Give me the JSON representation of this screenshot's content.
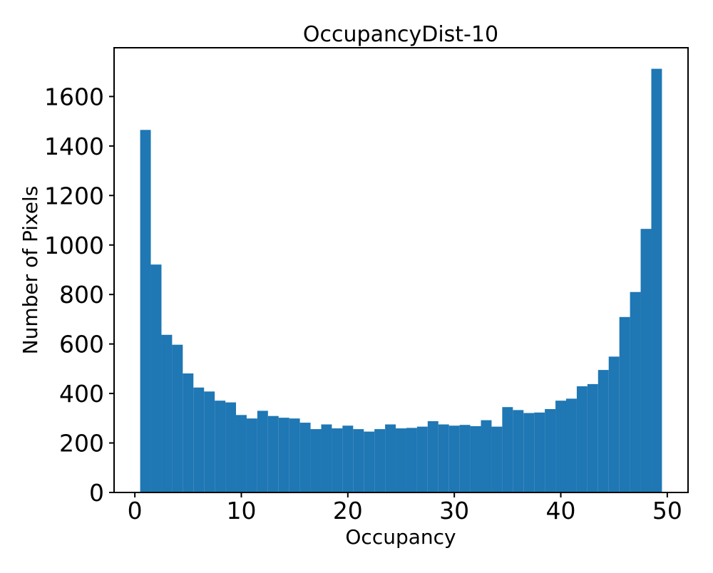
{
  "figure": {
    "background_color": "#ffffff"
  },
  "chart_data": {
    "type": "bar",
    "subtype": "histogram",
    "title": "OccupancyDist-10",
    "xlabel": "Occupancy",
    "ylabel": "Number of Pixels",
    "bar_color": "#1f77b4",
    "axis_color": "#000000",
    "grid": false,
    "legend": "none",
    "bin_width": 1,
    "bin_centers": [
      1,
      2,
      3,
      4,
      5,
      6,
      7,
      8,
      9,
      10,
      11,
      12,
      13,
      14,
      15,
      16,
      17,
      18,
      19,
      20,
      21,
      22,
      23,
      24,
      25,
      26,
      27,
      28,
      29,
      30,
      31,
      32,
      33,
      34,
      35,
      36,
      37,
      38,
      39,
      40,
      41,
      42,
      43,
      44,
      45,
      46,
      47,
      48,
      49
    ],
    "values": [
      1465,
      921,
      637,
      597,
      481,
      424,
      408,
      371,
      364,
      313,
      299,
      330,
      309,
      302,
      299,
      282,
      256,
      275,
      259,
      270,
      256,
      246,
      256,
      275,
      259,
      261,
      266,
      288,
      275,
      270,
      273,
      268,
      292,
      266,
      345,
      333,
      321,
      323,
      337,
      371,
      379,
      429,
      438,
      495,
      549,
      709,
      810,
      1065,
      1712
    ],
    "xticks": [
      0,
      10,
      20,
      30,
      40,
      50
    ],
    "yticks": [
      0,
      200,
      400,
      600,
      800,
      1000,
      1200,
      1400,
      1600
    ],
    "xlim": [
      -1.95,
      51.95
    ],
    "ylim": [
      0,
      1797
    ]
  }
}
